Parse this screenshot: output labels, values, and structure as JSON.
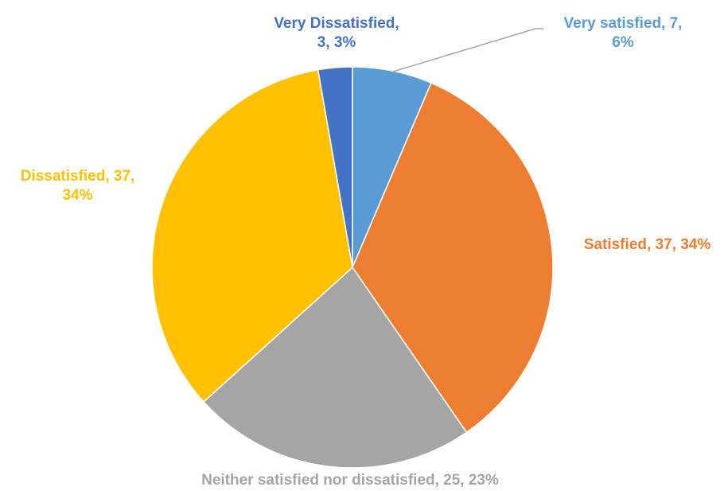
{
  "chart_data": {
    "type": "pie",
    "start_angle_deg": 0,
    "direction": "clockwise",
    "categories": [
      "Very satisfied",
      "Satisfied",
      "Neither satisfied nor dissatisfied",
      "Dissatisfied",
      "Very Dissatisfied"
    ],
    "values": [
      7,
      37,
      25,
      37,
      3
    ],
    "percentages": [
      "6%",
      "34%",
      "23%",
      "34%",
      "3%"
    ],
    "colors": [
      "#5B9BD5",
      "#ED7D31",
      "#A5A5A5",
      "#FFC000",
      "#4472C4"
    ],
    "labels": [
      {
        "lines": [
          "Very satisfied, 7,",
          "6%"
        ],
        "color": "#5B9BD5"
      },
      {
        "lines": [
          "Satisfied, 37, 34%"
        ],
        "color": "#ED7D31"
      },
      {
        "lines": [
          "Neither satisfied nor dissatisfied, 25, 23%"
        ],
        "color": "#A5A5A5"
      },
      {
        "lines": [
          "Dissatisfied, 37,",
          "34%"
        ],
        "color": "#FFC000"
      },
      {
        "lines": [
          "Very Dissatisfied,",
          "3, 3%"
        ],
        "color": "#4472C4"
      }
    ],
    "leader_line": {
      "slice": "Very satisfied",
      "color": "#A5A5A5"
    }
  }
}
